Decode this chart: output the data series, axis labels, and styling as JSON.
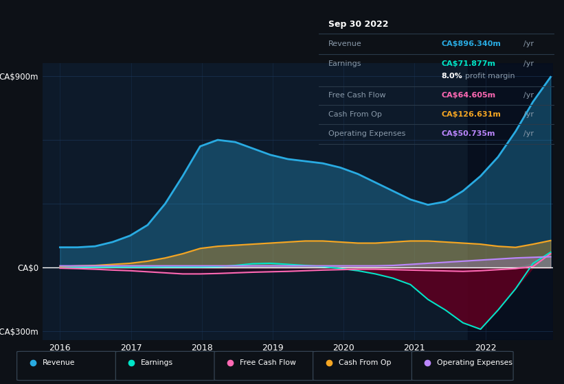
{
  "bg_color": "#0d1117",
  "plot_bg_color": "#0d1a2a",
  "grid_color": "#1e3a5f",
  "zero_line_color": "#ffffff",
  "title_y_label": "CA$900m",
  "bottom_y_label": "-CA$300m",
  "zero_y_label": "CA$0",
  "x_ticks": [
    2016,
    2017,
    2018,
    2019,
    2020,
    2021,
    2022
  ],
  "ylim": [
    -340,
    960
  ],
  "xlim_left": 2015.75,
  "xlim_right": 2022.95,
  "highlight_start": 2021.75,
  "colors": {
    "revenue": "#29abe2",
    "earnings": "#00e5c8",
    "free_cash_flow": "#ff69b4",
    "cash_from_op": "#f5a623",
    "operating_expenses": "#bb86fc"
  },
  "tooltip": {
    "date": "Sep 30 2022",
    "revenue_label": "Revenue",
    "revenue_value": "CA$896.340m",
    "earnings_label": "Earnings",
    "earnings_value": "CA$71.877m",
    "margin_pct": "8.0%",
    "margin_text": "profit margin",
    "fcf_label": "Free Cash Flow",
    "fcf_value": "CA$64.605m",
    "cashop_label": "Cash From Op",
    "cashop_value": "CA$126.631m",
    "opex_label": "Operating Expenses",
    "opex_value": "CA$50.735m",
    "per_yr": "/yr"
  },
  "revenue": [
    95,
    95,
    100,
    120,
    150,
    200,
    300,
    430,
    570,
    600,
    590,
    560,
    530,
    510,
    500,
    490,
    470,
    440,
    400,
    360,
    320,
    295,
    310,
    360,
    430,
    520,
    640,
    780,
    896
  ],
  "earnings": [
    2,
    2,
    2,
    2,
    2,
    2,
    3,
    3,
    3,
    4,
    10,
    18,
    20,
    15,
    10,
    5,
    -5,
    -15,
    -30,
    -50,
    -80,
    -150,
    -200,
    -260,
    -290,
    -200,
    -100,
    20,
    72
  ],
  "free_cash_flow": [
    -3,
    -5,
    -8,
    -12,
    -15,
    -20,
    -25,
    -30,
    -30,
    -28,
    -25,
    -22,
    -20,
    -18,
    -15,
    -12,
    -10,
    -8,
    -8,
    -10,
    -12,
    -14,
    -16,
    -18,
    -15,
    -10,
    -5,
    5,
    65
  ],
  "cash_from_op": [
    5,
    8,
    10,
    15,
    20,
    30,
    45,
    65,
    90,
    100,
    105,
    110,
    115,
    120,
    125,
    125,
    120,
    115,
    115,
    120,
    125,
    125,
    120,
    115,
    110,
    100,
    95,
    110,
    127
  ],
  "operating_expenses": [
    8,
    8,
    8,
    8,
    8,
    8,
    8,
    8,
    8,
    8,
    8,
    8,
    8,
    8,
    8,
    8,
    8,
    8,
    8,
    10,
    15,
    20,
    25,
    30,
    35,
    40,
    45,
    48,
    51
  ]
}
